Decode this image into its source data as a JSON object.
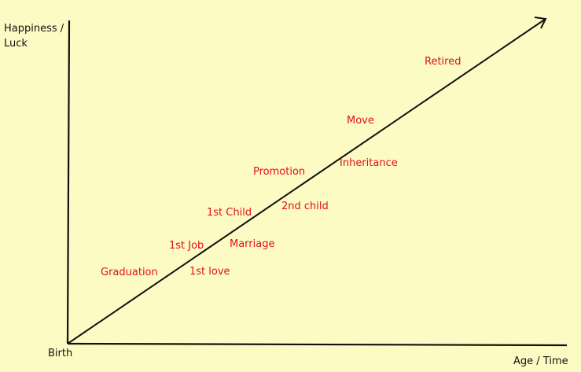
{
  "colors": {
    "background": "#fdfbc4",
    "axis": "#111111",
    "arrow": "#111111",
    "event_text": "#e0101a"
  },
  "diagram": {
    "y_axis_label_line1": "Happiness /",
    "y_axis_label_line2": "Luck",
    "x_axis_label": "Age / Time",
    "origin_label": "Birth",
    "events": [
      "Graduation",
      "1st love",
      "1st Job",
      "Marriage",
      "1st Child",
      "2nd child",
      "Promotion",
      "Inheritance",
      "Move",
      "Retired"
    ]
  }
}
